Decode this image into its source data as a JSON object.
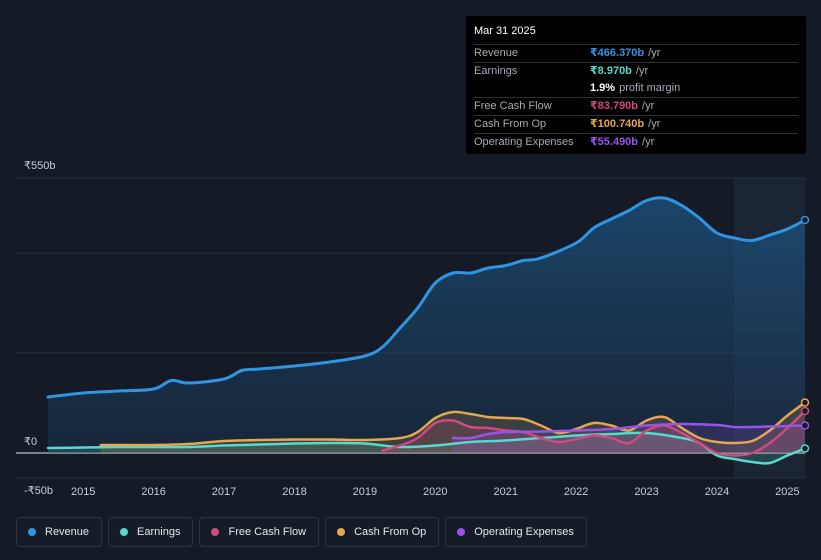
{
  "tooltip": {
    "date": "Mar 31 2025",
    "rows": [
      {
        "label": "Revenue",
        "value": "₹466.370b",
        "unit": "/yr",
        "color": "#2f95e3"
      },
      {
        "label": "Earnings",
        "value": "₹8.970b",
        "unit": "/yr",
        "color": "#56d9cf"
      },
      {
        "label": "",
        "value": "1.9%",
        "unit": "profit margin",
        "color": "#ffffff"
      },
      {
        "label": "Free Cash Flow",
        "value": "₹83.790b",
        "unit": "/yr",
        "color": "#d2487f"
      },
      {
        "label": "Cash From Op",
        "value": "₹100.740b",
        "unit": "/yr",
        "color": "#e5a650"
      },
      {
        "label": "Operating Expenses",
        "value": "₹55.490b",
        "unit": "/yr",
        "color": "#9b52e8"
      }
    ]
  },
  "legend": [
    {
      "label": "Revenue",
      "color": "#2f95e3"
    },
    {
      "label": "Earnings",
      "color": "#56d9cf"
    },
    {
      "label": "Free Cash Flow",
      "color": "#d2487f"
    },
    {
      "label": "Cash From Op",
      "color": "#e5a650"
    },
    {
      "label": "Operating Expenses",
      "color": "#9b52e8"
    }
  ],
  "chart_data": {
    "type": "line",
    "title": "",
    "unit": "₹ billions",
    "ylim": [
      -50,
      550
    ],
    "y_tick_labels": [
      {
        "value": 550,
        "label": "₹550b"
      },
      {
        "value": 0,
        "label": "₹0"
      },
      {
        "value": -50,
        "label": "-₹50b"
      }
    ],
    "xlim": [
      2014.5,
      2025.25
    ],
    "x_ticks": [
      2015,
      2016,
      2017,
      2018,
      2019,
      2020,
      2021,
      2022,
      2023,
      2024,
      2025
    ],
    "forecast_start": 2024.25,
    "series": [
      {
        "name": "Revenue",
        "color": "#2f95e3",
        "points": [
          [
            2014.5,
            112
          ],
          [
            2015,
            120
          ],
          [
            2015.5,
            124
          ],
          [
            2016,
            128
          ],
          [
            2016.25,
            145
          ],
          [
            2016.5,
            140
          ],
          [
            2017,
            148
          ],
          [
            2017.25,
            165
          ],
          [
            2017.5,
            168
          ],
          [
            2018,
            174
          ],
          [
            2018.5,
            182
          ],
          [
            2019,
            194
          ],
          [
            2019.25,
            212
          ],
          [
            2019.5,
            250
          ],
          [
            2019.75,
            290
          ],
          [
            2020,
            340
          ],
          [
            2020.25,
            360
          ],
          [
            2020.5,
            360
          ],
          [
            2020.75,
            370
          ],
          [
            2021,
            375
          ],
          [
            2021.25,
            385
          ],
          [
            2021.5,
            390
          ],
          [
            2022,
            420
          ],
          [
            2022.25,
            450
          ],
          [
            2022.5,
            468
          ],
          [
            2022.75,
            485
          ],
          [
            2023,
            505
          ],
          [
            2023.25,
            510
          ],
          [
            2023.5,
            495
          ],
          [
            2023.75,
            470
          ],
          [
            2024,
            440
          ],
          [
            2024.25,
            430
          ],
          [
            2024.5,
            425
          ],
          [
            2024.75,
            436
          ],
          [
            2025,
            448
          ],
          [
            2025.25,
            466
          ]
        ]
      },
      {
        "name": "Earnings",
        "color": "#56d9cf",
        "points": [
          [
            2014.5,
            10
          ],
          [
            2015,
            11
          ],
          [
            2015.5,
            12
          ],
          [
            2016,
            12
          ],
          [
            2016.5,
            12
          ],
          [
            2017,
            15
          ],
          [
            2017.5,
            17
          ],
          [
            2018,
            19
          ],
          [
            2018.5,
            20
          ],
          [
            2019,
            19
          ],
          [
            2019.5,
            12
          ],
          [
            2020,
            15
          ],
          [
            2020.5,
            22
          ],
          [
            2021,
            25
          ],
          [
            2021.5,
            30
          ],
          [
            2022,
            35
          ],
          [
            2022.5,
            38
          ],
          [
            2023,
            40
          ],
          [
            2023.5,
            30
          ],
          [
            2023.75,
            20
          ],
          [
            2024,
            -5
          ],
          [
            2024.25,
            -12
          ],
          [
            2024.5,
            -18
          ],
          [
            2024.75,
            -20
          ],
          [
            2025,
            -5
          ],
          [
            2025.25,
            9
          ]
        ]
      },
      {
        "name": "Free Cash Flow",
        "color": "#d2487f",
        "points": [
          [
            2019.25,
            5
          ],
          [
            2019.5,
            15
          ],
          [
            2019.75,
            30
          ],
          [
            2020,
            60
          ],
          [
            2020.25,
            65
          ],
          [
            2020.5,
            52
          ],
          [
            2020.75,
            50
          ],
          [
            2021,
            45
          ],
          [
            2021.25,
            42
          ],
          [
            2021.5,
            30
          ],
          [
            2021.75,
            22
          ],
          [
            2022,
            28
          ],
          [
            2022.25,
            35
          ],
          [
            2022.5,
            30
          ],
          [
            2022.75,
            20
          ],
          [
            2023,
            45
          ],
          [
            2023.25,
            55
          ],
          [
            2023.5,
            40
          ],
          [
            2023.75,
            20
          ],
          [
            2024,
            0
          ],
          [
            2024.25,
            -5
          ],
          [
            2024.5,
            0
          ],
          [
            2024.75,
            20
          ],
          [
            2025,
            50
          ],
          [
            2025.25,
            84
          ]
        ]
      },
      {
        "name": "Cash From Op",
        "color": "#e5a650",
        "points": [
          [
            2015.25,
            16
          ],
          [
            2015.5,
            16
          ],
          [
            2016,
            16
          ],
          [
            2016.5,
            18
          ],
          [
            2017,
            24
          ],
          [
            2017.5,
            26
          ],
          [
            2018,
            27
          ],
          [
            2018.5,
            27
          ],
          [
            2019,
            26
          ],
          [
            2019.5,
            30
          ],
          [
            2019.75,
            42
          ],
          [
            2020,
            70
          ],
          [
            2020.25,
            82
          ],
          [
            2020.5,
            78
          ],
          [
            2020.75,
            72
          ],
          [
            2021,
            70
          ],
          [
            2021.25,
            68
          ],
          [
            2021.5,
            55
          ],
          [
            2021.75,
            40
          ],
          [
            2022,
            48
          ],
          [
            2022.25,
            60
          ],
          [
            2022.5,
            55
          ],
          [
            2022.75,
            45
          ],
          [
            2023,
            65
          ],
          [
            2023.25,
            72
          ],
          [
            2023.5,
            50
          ],
          [
            2023.75,
            30
          ],
          [
            2024,
            22
          ],
          [
            2024.25,
            20
          ],
          [
            2024.5,
            24
          ],
          [
            2024.75,
            45
          ],
          [
            2025,
            75
          ],
          [
            2025.25,
            101
          ]
        ]
      },
      {
        "name": "Operating Expenses",
        "color": "#9b52e8",
        "points": [
          [
            2020.25,
            30
          ],
          [
            2020.5,
            30
          ],
          [
            2020.75,
            38
          ],
          [
            2021,
            42
          ],
          [
            2021.5,
            43
          ],
          [
            2022,
            45
          ],
          [
            2022.5,
            48
          ],
          [
            2023,
            55
          ],
          [
            2023.5,
            58
          ],
          [
            2024,
            56
          ],
          [
            2024.25,
            52
          ],
          [
            2024.5,
            52
          ],
          [
            2025,
            54
          ],
          [
            2025.25,
            55
          ]
        ]
      }
    ]
  }
}
